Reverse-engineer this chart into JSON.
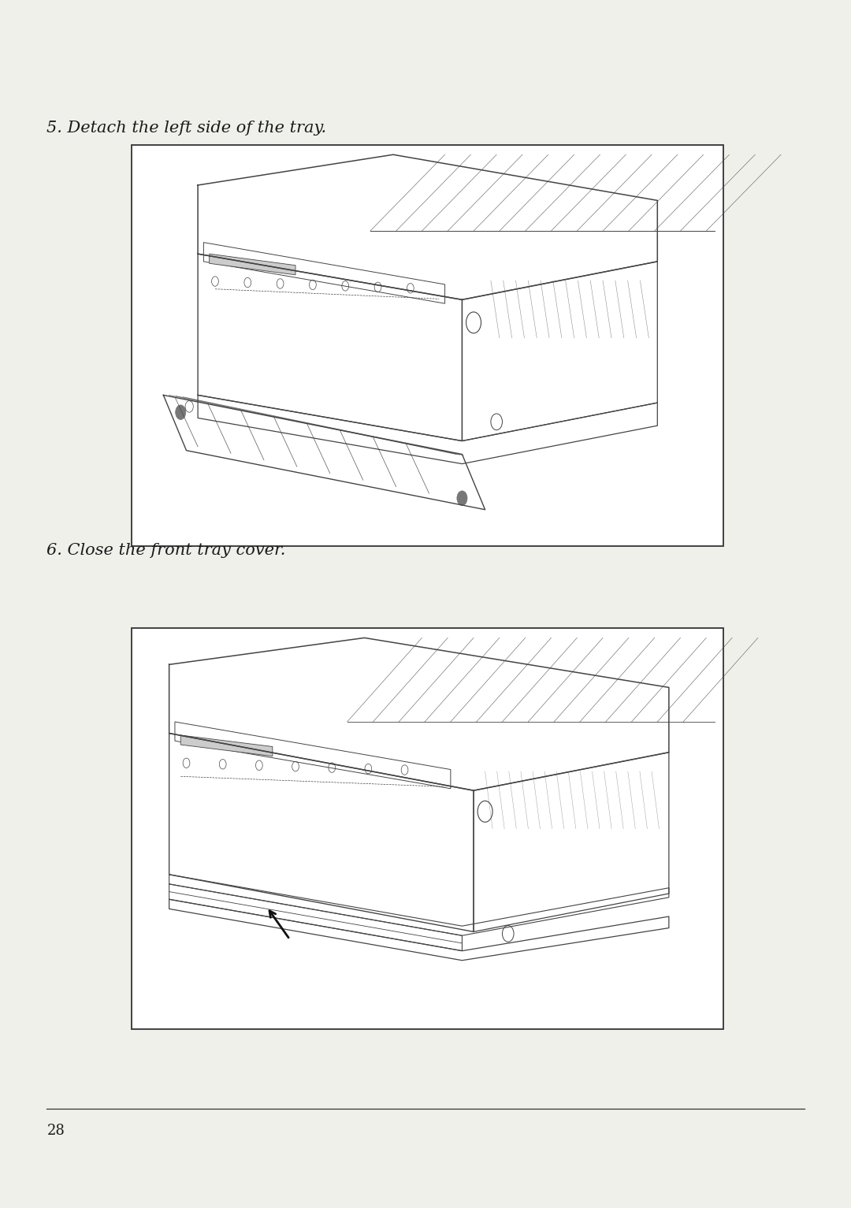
{
  "bg_color": "#f0f0eb",
  "page_number": "28",
  "step5_text": "5. Detach the left side of the tray.",
  "step6_text": "6. Close the front tray cover.",
  "text_color": "#1a1a1a",
  "border_color": "#333333",
  "line_color": "#444444",
  "fig_width": 10.8,
  "fig_height": 15.33,
  "font_size_step": 15,
  "font_size_page": 13
}
